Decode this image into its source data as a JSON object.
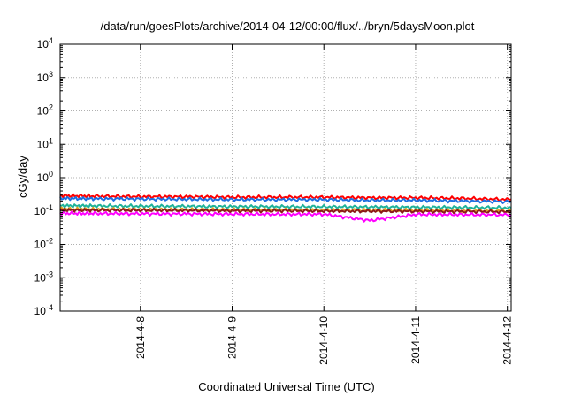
{
  "chart_data": {
    "type": "line",
    "title": "/data/run/goesPlots/archive/2014-04-12/00:00/flux/../bryn/5daysMoon.plot",
    "xlabel": "Coordinated Universal Time (UTC)",
    "ylabel": "cGy/day",
    "y_scale": "log",
    "ylim": [
      0.0001,
      10000
    ],
    "y_ticks": [
      {
        "value": 0.0001,
        "base": "10",
        "exp": "-4"
      },
      {
        "value": 0.001,
        "base": "10",
        "exp": "-3"
      },
      {
        "value": 0.01,
        "base": "10",
        "exp": "-2"
      },
      {
        "value": 0.1,
        "base": "10",
        "exp": "-1"
      },
      {
        "value": 1,
        "base": "10",
        "exp": "0"
      },
      {
        "value": 10,
        "base": "10",
        "exp": "1"
      },
      {
        "value": 100,
        "base": "10",
        "exp": "2"
      },
      {
        "value": 1000,
        "base": "10",
        "exp": "3"
      },
      {
        "value": 10000,
        "base": "10",
        "exp": "4"
      }
    ],
    "xlim": [
      "2014-04-07T03:00",
      "2014-04-12T01:00"
    ],
    "x_ticks": [
      {
        "value": "2014-04-08",
        "label": "2014-4-8"
      },
      {
        "value": "2014-04-09",
        "label": "2014-4-9"
      },
      {
        "value": "2014-04-10",
        "label": "2014-4-10"
      },
      {
        "value": "2014-04-11",
        "label": "2014-4-11"
      },
      {
        "value": "2014-04-12",
        "label": "2014-4-12"
      }
    ],
    "grid": true,
    "series": [
      {
        "color": "#ff0000",
        "values": [
          [
            "2014-04-07T03:00",
            0.29
          ],
          [
            "2014-04-07T12:00",
            0.28
          ],
          [
            "2014-04-08T00:00",
            0.27
          ],
          [
            "2014-04-08T12:00",
            0.27
          ],
          [
            "2014-04-09T00:00",
            0.26
          ],
          [
            "2014-04-09T12:00",
            0.26
          ],
          [
            "2014-04-10T00:00",
            0.26
          ],
          [
            "2014-04-10T12:00",
            0.25
          ],
          [
            "2014-04-11T00:00",
            0.25
          ],
          [
            "2014-04-11T12:00",
            0.24
          ],
          [
            "2014-04-12T01:00",
            0.22
          ]
        ]
      },
      {
        "color": "#1f6fe0",
        "values": [
          [
            "2014-04-07T03:00",
            0.24
          ],
          [
            "2014-04-07T12:00",
            0.235
          ],
          [
            "2014-04-08T00:00",
            0.23
          ],
          [
            "2014-04-08T12:00",
            0.225
          ],
          [
            "2014-04-09T00:00",
            0.22
          ],
          [
            "2014-04-09T12:00",
            0.22
          ],
          [
            "2014-04-10T00:00",
            0.22
          ],
          [
            "2014-04-10T12:00",
            0.21
          ],
          [
            "2014-04-11T00:00",
            0.21
          ],
          [
            "2014-04-11T12:00",
            0.2
          ],
          [
            "2014-04-12T01:00",
            0.19
          ]
        ]
      },
      {
        "color": "#1fb39a",
        "values": [
          [
            "2014-04-07T03:00",
            0.145
          ],
          [
            "2014-04-07T12:00",
            0.142
          ],
          [
            "2014-04-08T00:00",
            0.14
          ],
          [
            "2014-04-08T12:00",
            0.138
          ],
          [
            "2014-04-09T00:00",
            0.136
          ],
          [
            "2014-04-09T12:00",
            0.135
          ],
          [
            "2014-04-10T00:00",
            0.134
          ],
          [
            "2014-04-10T12:00",
            0.132
          ],
          [
            "2014-04-11T00:00",
            0.13
          ],
          [
            "2014-04-11T12:00",
            0.128
          ],
          [
            "2014-04-12T01:00",
            0.125
          ]
        ]
      },
      {
        "color": "#e0a020",
        "values": [
          [
            "2014-04-07T03:00",
            0.115
          ],
          [
            "2014-04-07T12:00",
            0.113
          ],
          [
            "2014-04-08T00:00",
            0.112
          ],
          [
            "2014-04-08T12:00",
            0.11
          ],
          [
            "2014-04-09T00:00",
            0.108
          ],
          [
            "2014-04-09T12:00",
            0.108
          ],
          [
            "2014-04-10T00:00",
            0.107
          ],
          [
            "2014-04-10T12:00",
            0.105
          ],
          [
            "2014-04-11T00:00",
            0.104
          ],
          [
            "2014-04-11T12:00",
            0.102
          ],
          [
            "2014-04-12T01:00",
            0.1
          ]
        ]
      },
      {
        "color": "#8b1a1a",
        "values": [
          [
            "2014-04-07T03:00",
            0.108
          ],
          [
            "2014-04-07T12:00",
            0.106
          ],
          [
            "2014-04-08T00:00",
            0.105
          ],
          [
            "2014-04-08T12:00",
            0.104
          ],
          [
            "2014-04-09T00:00",
            0.102
          ],
          [
            "2014-04-09T12:00",
            0.102
          ],
          [
            "2014-04-10T00:00",
            0.1
          ],
          [
            "2014-04-10T12:00",
            0.099
          ],
          [
            "2014-04-11T00:00",
            0.098
          ],
          [
            "2014-04-11T12:00",
            0.097
          ],
          [
            "2014-04-12T01:00",
            0.095
          ]
        ]
      },
      {
        "color": "#ff00ff",
        "values": [
          [
            "2014-04-07T03:00",
            0.085
          ],
          [
            "2014-04-07T12:00",
            0.084
          ],
          [
            "2014-04-08T00:00",
            0.083
          ],
          [
            "2014-04-08T12:00",
            0.082
          ],
          [
            "2014-04-09T00:00",
            0.081
          ],
          [
            "2014-04-09T12:00",
            0.08
          ],
          [
            "2014-04-10T00:00",
            0.08
          ],
          [
            "2014-04-10T12:00",
            0.052
          ],
          [
            "2014-04-11T00:00",
            0.079
          ],
          [
            "2014-04-11T12:00",
            0.078
          ],
          [
            "2014-04-12T01:00",
            0.077
          ]
        ]
      }
    ]
  }
}
